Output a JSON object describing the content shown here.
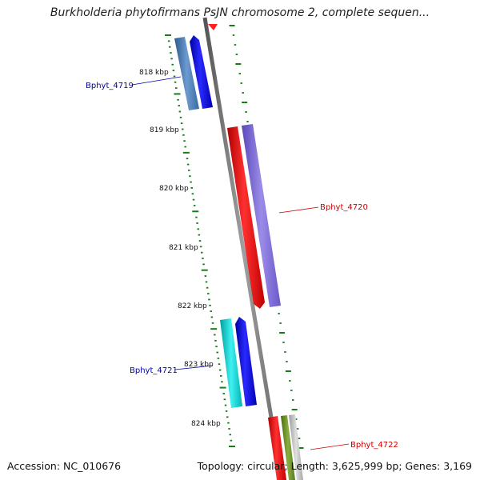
{
  "title": "Burkholderia phytofirmans PsJN chromosome 2, complete sequen...",
  "footer": {
    "accession": "Accession: NC_010676",
    "summary": "Topology: circular; Length: 3,625,999 bp; Genes: 3,169"
  },
  "ruler": {
    "labels": [
      "818 kbp",
      "819 kbp",
      "820 kbp",
      "821 kbp",
      "822 kbp",
      "823 kbp",
      "824 kbp"
    ],
    "tick_color": "#1a7a1a"
  },
  "genes": [
    {
      "name": "Bphyt_4719",
      "label_color": "#0000aa"
    },
    {
      "name": "Bphyt_4720",
      "label_color": "#cc0000"
    },
    {
      "name": "Bphyt_4721",
      "label_color": "#0000aa"
    },
    {
      "name": "Bphyt_4722",
      "label_color": "#cc0000"
    }
  ],
  "colors": {
    "backbone": "#7a7a7a",
    "forward_gene": "#ff0000",
    "forward_cds": "#7b68d6",
    "reverse_gene": "#0000ff",
    "reverse_cds_1": "#4f7fb8",
    "reverse_cds_2": "#00c8c8"
  }
}
